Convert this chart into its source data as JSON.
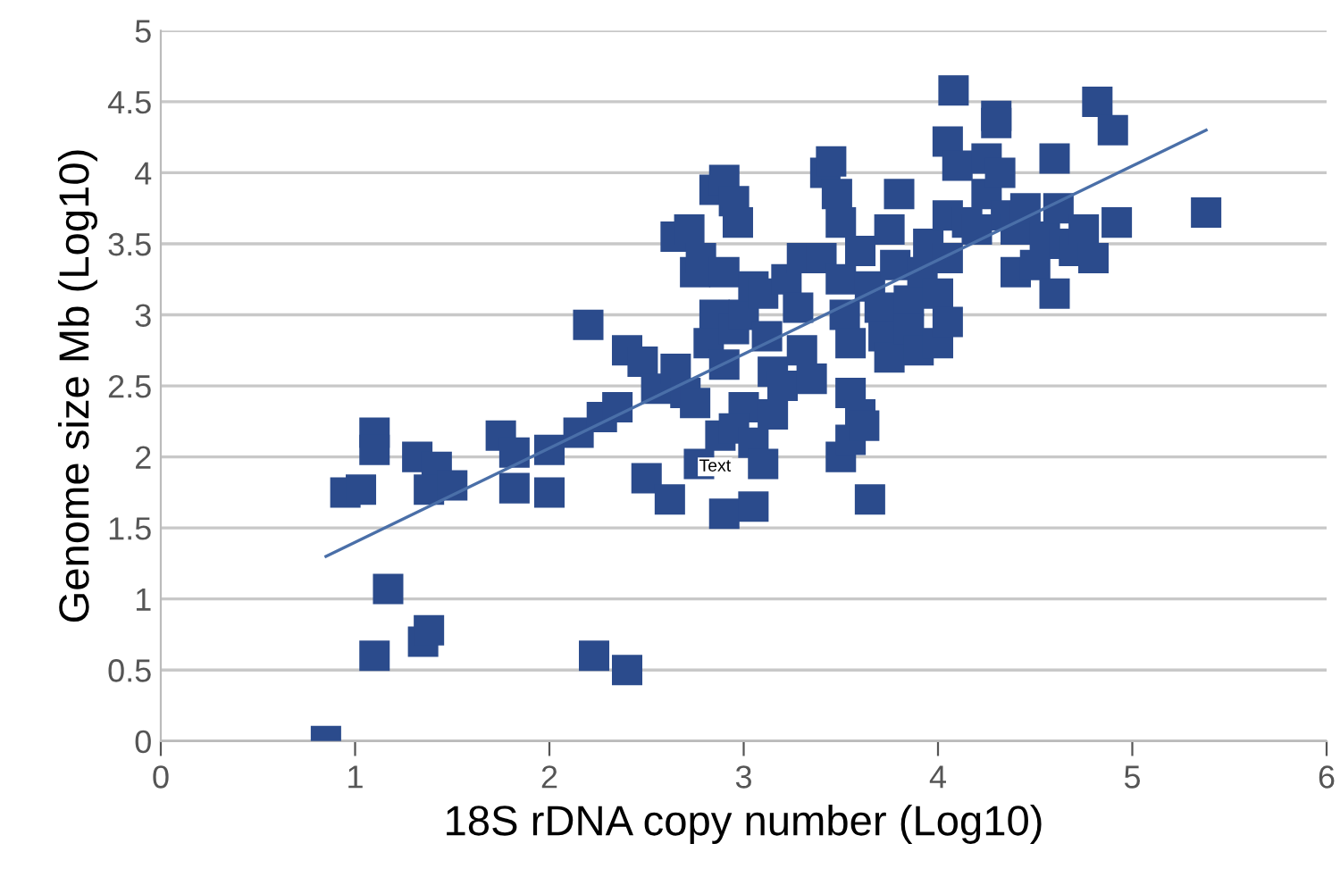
{
  "chart_data": {
    "type": "scatter",
    "xlabel": "18S rDNA copy number (Log10)",
    "ylabel": "Genome size Mb (Log10)",
    "xlim": [
      0,
      6
    ],
    "ylim": [
      0,
      5
    ],
    "xticks": [
      0,
      1,
      2,
      3,
      4,
      5,
      6
    ],
    "yticks": [
      0,
      0.5,
      1,
      1.5,
      2,
      2.5,
      3,
      3.5,
      4,
      4.5,
      5
    ],
    "grid": "y",
    "annotations": [
      {
        "text": "Text",
        "x": 2.77,
        "y": 1.93
      }
    ],
    "series": [
      {
        "color": "#2b4b8c",
        "marker": "square",
        "x": [
          0.85,
          1.1,
          1.17,
          1.35,
          1.38,
          2.23,
          2.4,
          0.95,
          1.03,
          1.1,
          1.1,
          1.32,
          1.42,
          1.38,
          1.5,
          1.75,
          1.82,
          1.82,
          2.0,
          2.0,
          2.15,
          2.2,
          2.27,
          2.35,
          2.4,
          2.48,
          2.5,
          2.55,
          2.62,
          2.65,
          2.7,
          2.75,
          2.77,
          2.9,
          3.05,
          2.65,
          2.72,
          2.75,
          2.78,
          2.85,
          2.9,
          2.95,
          2.97,
          2.9,
          2.85,
          2.82,
          2.9,
          2.95,
          3.0,
          3.05,
          3.1,
          3.12,
          3.15,
          3.0,
          2.88,
          2.95,
          3.05,
          3.1,
          3.15,
          3.2,
          3.22,
          3.28,
          3.3,
          3.3,
          3.35,
          3.4,
          3.42,
          3.45,
          3.48,
          3.5,
          3.5,
          3.52,
          3.55,
          3.55,
          3.5,
          3.55,
          3.6,
          3.62,
          3.65,
          3.6,
          3.65,
          3.7,
          3.72,
          3.75,
          3.75,
          3.78,
          3.8,
          3.85,
          3.85,
          3.9,
          3.92,
          3.95,
          4.0,
          4.0,
          4.05,
          4.05,
          4.05,
          4.08,
          4.05,
          4.1,
          4.15,
          4.2,
          4.25,
          4.25,
          4.3,
          4.3,
          4.32,
          4.35,
          4.4,
          4.4,
          4.45,
          4.5,
          4.55,
          4.6,
          4.62,
          4.6,
          4.65,
          4.7,
          4.75,
          4.8,
          4.82,
          4.9,
          4.92,
          5.38
        ],
        "values": [
          0.0,
          0.6,
          1.07,
          0.7,
          0.78,
          0.6,
          0.5,
          1.75,
          1.77,
          2.17,
          2.05,
          2.0,
          1.93,
          1.77,
          1.8,
          2.15,
          2.03,
          1.78,
          1.75,
          2.05,
          2.17,
          2.93,
          2.28,
          2.35,
          2.75,
          2.67,
          1.85,
          2.48,
          1.7,
          2.62,
          2.45,
          2.38,
          1.95,
          1.6,
          1.65,
          3.55,
          3.6,
          3.3,
          3.4,
          3.88,
          3.95,
          3.8,
          3.65,
          3.3,
          3.0,
          2.8,
          2.65,
          2.9,
          3.0,
          3.2,
          3.15,
          2.85,
          2.6,
          2.35,
          2.15,
          2.2,
          2.1,
          1.95,
          2.3,
          2.5,
          3.25,
          3.05,
          2.75,
          3.4,
          2.55,
          3.4,
          4.0,
          4.08,
          3.85,
          3.65,
          3.25,
          3.0,
          2.8,
          2.45,
          2.0,
          2.12,
          2.3,
          2.22,
          1.7,
          3.45,
          3.2,
          3.05,
          2.85,
          2.7,
          3.6,
          3.35,
          3.85,
          3.1,
          2.9,
          2.75,
          3.3,
          3.5,
          3.15,
          2.8,
          2.95,
          3.4,
          4.22,
          4.58,
          3.7,
          4.05,
          3.65,
          3.6,
          3.85,
          4.1,
          4.4,
          4.35,
          4.0,
          3.7,
          3.6,
          3.3,
          3.75,
          3.35,
          3.55,
          3.15,
          3.75,
          4.1,
          3.5,
          3.45,
          3.6,
          3.4,
          4.5,
          4.3,
          3.65,
          3.72
        ]
      },
      {
        "type": "line",
        "color": "#4a6fa8",
        "x": [
          0.85,
          5.38
        ],
        "values": [
          1.3,
          4.3
        ]
      }
    ]
  }
}
